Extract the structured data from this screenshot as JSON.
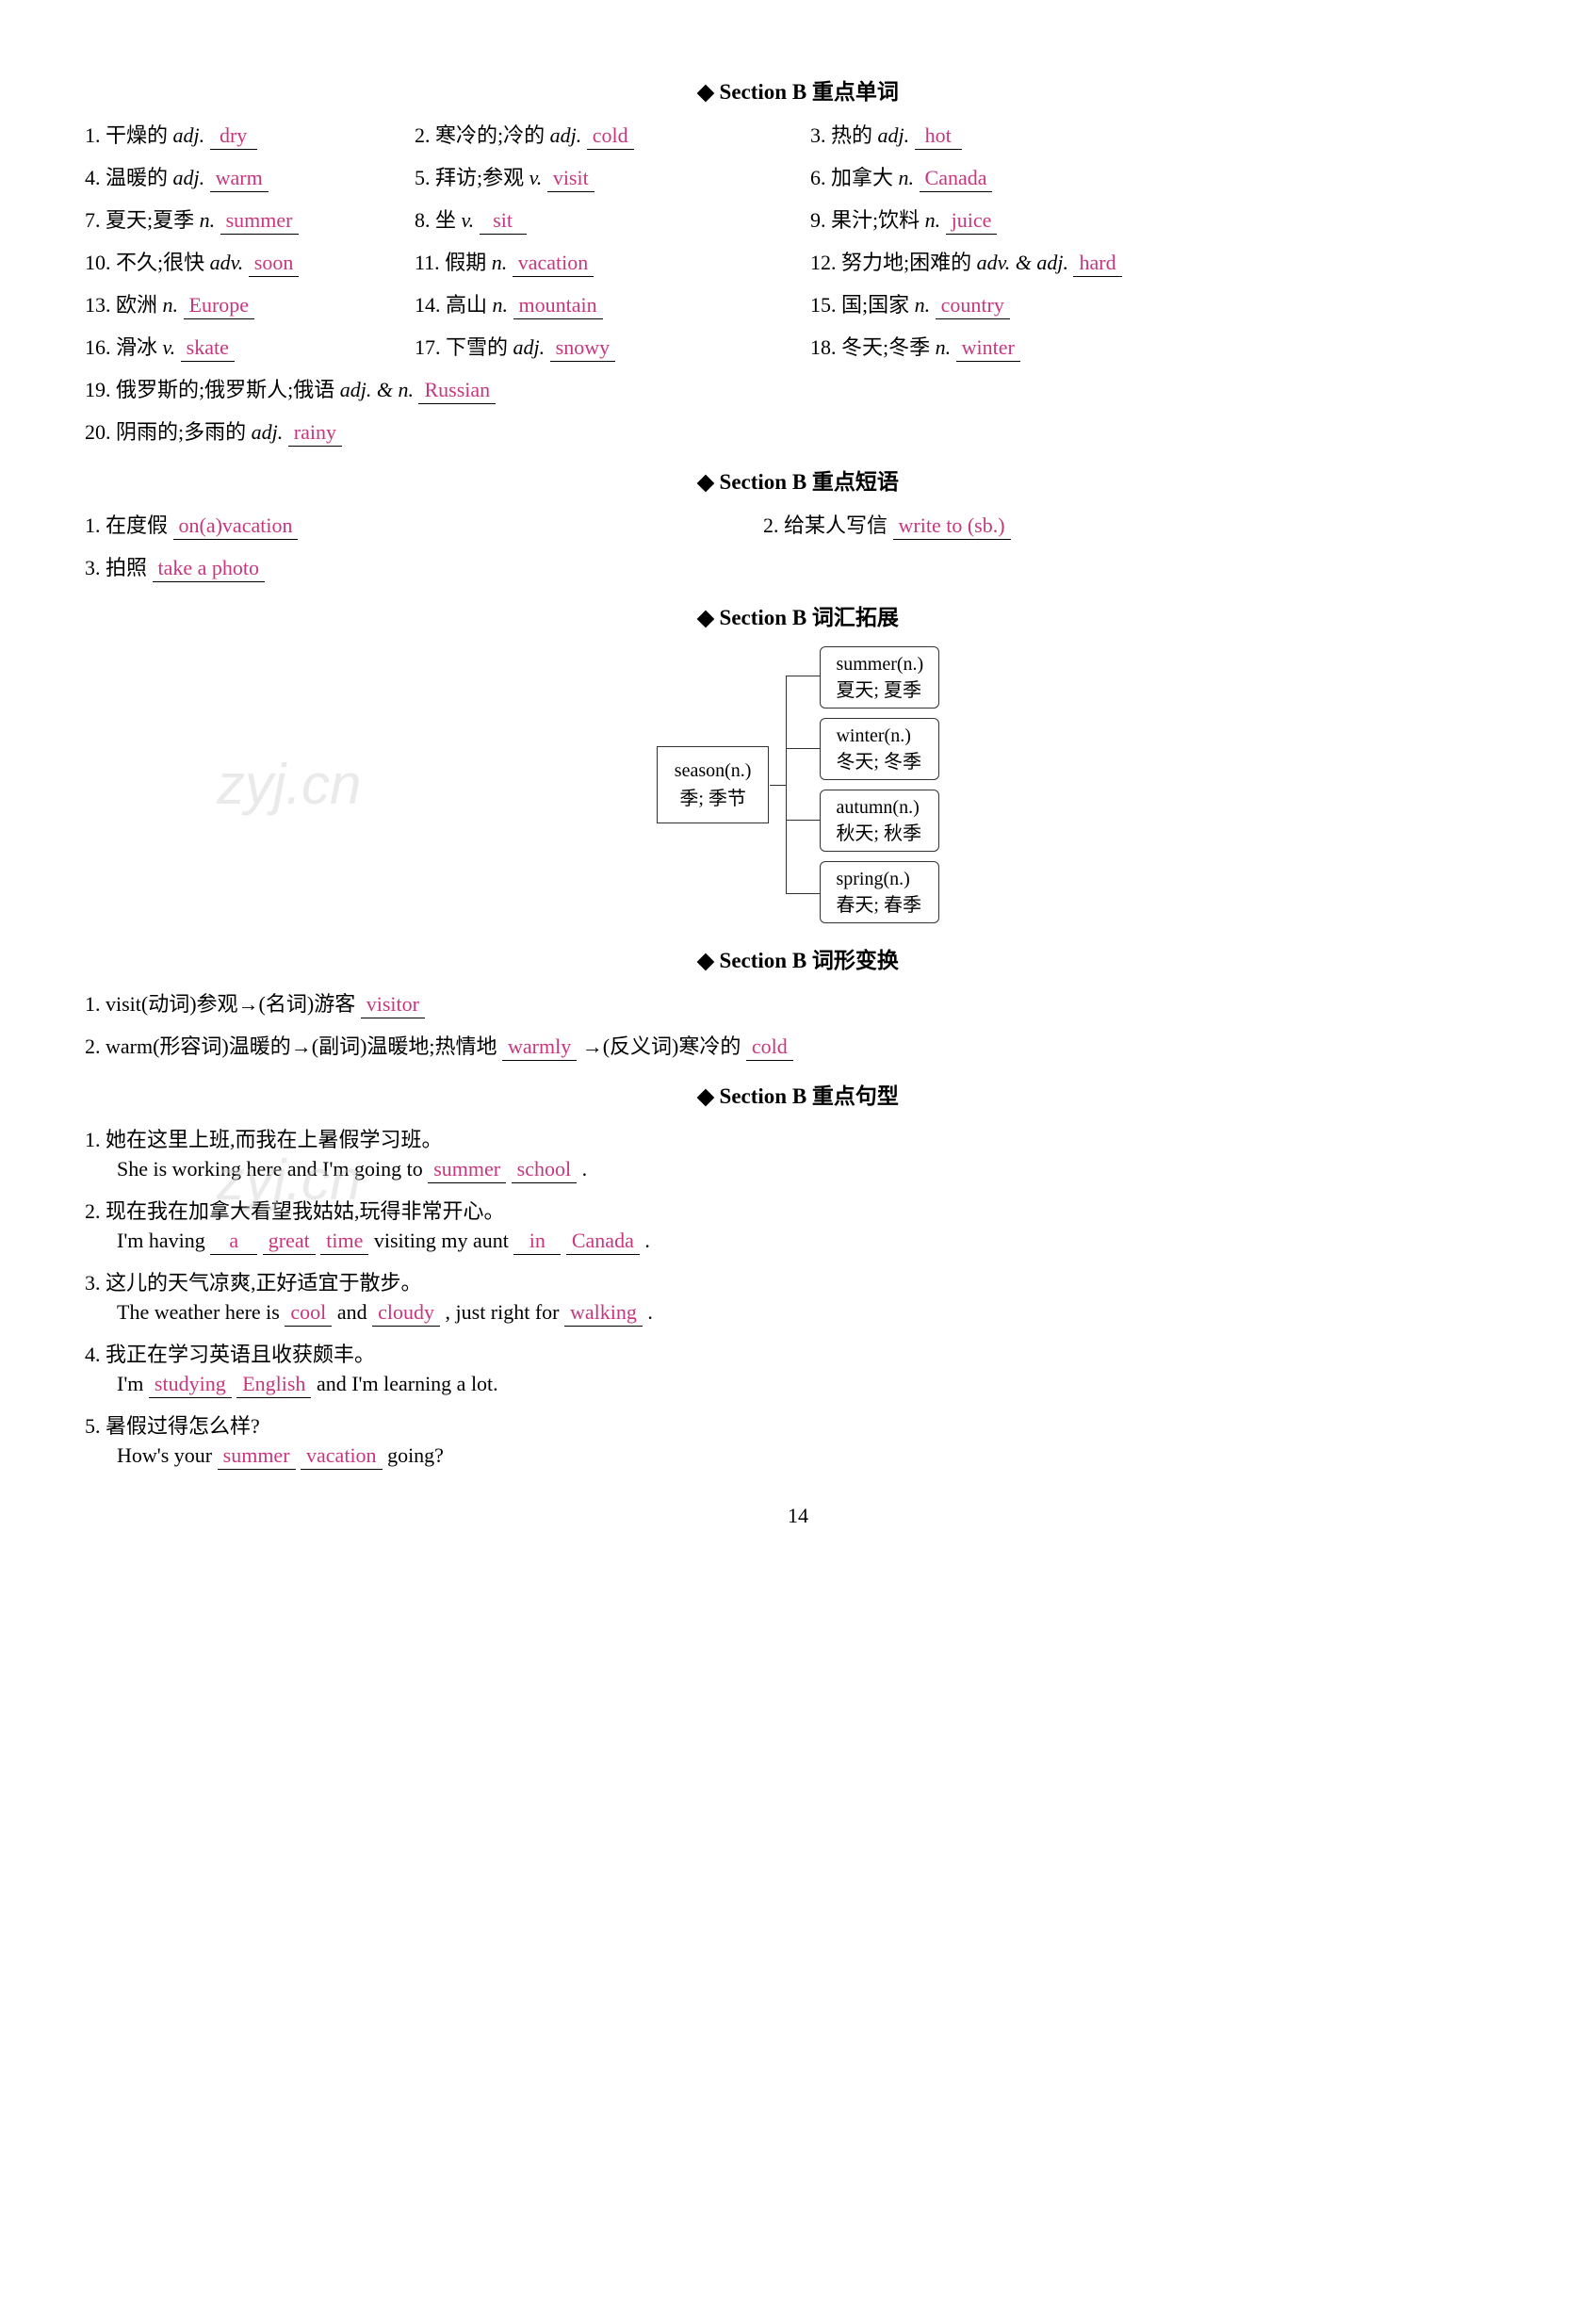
{
  "sections": {
    "vocab": {
      "title": "Section B 重点单词"
    },
    "phrases": {
      "title": "Section B 重点短语"
    },
    "expand": {
      "title": "Section B 词汇拓展"
    },
    "forms": {
      "title": "Section B 词形变换"
    },
    "sentences": {
      "title": "Section B 重点句型"
    }
  },
  "vocab": [
    {
      "n": "1.",
      "zh": "干燥的",
      "pos": "adj.",
      "ans": "dry"
    },
    {
      "n": "2.",
      "zh": "寒冷的;冷的",
      "pos": "adj.",
      "ans": "cold"
    },
    {
      "n": "3.",
      "zh": "热的",
      "pos": "adj.",
      "ans": "hot"
    },
    {
      "n": "4.",
      "zh": "温暖的",
      "pos": "adj.",
      "ans": "warm"
    },
    {
      "n": "5.",
      "zh": "拜访;参观",
      "pos": "v.",
      "ans": "visit"
    },
    {
      "n": "6.",
      "zh": "加拿大",
      "pos": "n.",
      "ans": "Canada"
    },
    {
      "n": "7.",
      "zh": "夏天;夏季",
      "pos": "n.",
      "ans": "summer"
    },
    {
      "n": "8.",
      "zh": "坐",
      "pos": "v.",
      "ans": "sit"
    },
    {
      "n": "9.",
      "zh": "果汁;饮料",
      "pos": "n.",
      "ans": "juice"
    },
    {
      "n": "10.",
      "zh": "不久;很快",
      "pos": "adv.",
      "ans": "soon"
    },
    {
      "n": "11.",
      "zh": "假期",
      "pos": "n.",
      "ans": "vacation"
    },
    {
      "n": "12.",
      "zh": "努力地;困难的",
      "pos": "adv. & adj.",
      "ans": "hard"
    },
    {
      "n": "13.",
      "zh": "欧洲",
      "pos": "n.",
      "ans": "Europe"
    },
    {
      "n": "14.",
      "zh": "高山",
      "pos": "n.",
      "ans": "mountain"
    },
    {
      "n": "15.",
      "zh": "国;国家",
      "pos": "n.",
      "ans": "country"
    },
    {
      "n": "16.",
      "zh": "滑冰",
      "pos": "v.",
      "ans": "skate"
    },
    {
      "n": "17.",
      "zh": "下雪的",
      "pos": "adj.",
      "ans": "snowy"
    },
    {
      "n": "18.",
      "zh": "冬天;冬季",
      "pos": "n.",
      "ans": "winter"
    },
    {
      "n": "19.",
      "zh": "俄罗斯的;俄罗斯人;俄语",
      "pos": "adj. & n.",
      "ans": "Russian"
    },
    {
      "n": "20.",
      "zh": "阴雨的;多雨的",
      "pos": "adj.",
      "ans": "rainy"
    }
  ],
  "phrases": [
    {
      "n": "1.",
      "zh": "在度假",
      "ans": "on(a)vacation"
    },
    {
      "n": "2.",
      "zh": "给某人写信",
      "ans": "write to (sb.)"
    },
    {
      "n": "3.",
      "zh": "拍照",
      "ans": "take a photo"
    }
  ],
  "diagram": {
    "root": {
      "en": "season(n.)",
      "zh": "季; 季节"
    },
    "children": [
      {
        "en": "summer(n.)",
        "zh": "夏天; 夏季"
      },
      {
        "en": "winter(n.)",
        "zh": "冬天; 冬季"
      },
      {
        "en": "autumn(n.)",
        "zh": "秋天; 秋季"
      },
      {
        "en": "spring(n.)",
        "zh": "春天; 春季"
      }
    ]
  },
  "forms": [
    {
      "n": "1.",
      "pre": "visit(动词)参观→(名词)游客",
      "ans1": "visitor"
    },
    {
      "n": "2.",
      "pre": "warm(形容词)温暖的→(副词)温暖地;热情地",
      "ans1": "warmly",
      "mid": "→(反义词)寒冷的",
      "ans2": "cold"
    }
  ],
  "sentences": [
    {
      "n": "1.",
      "zh": "她在这里上班,而我在上暑假学习班。",
      "en_pre": "She is working here and I'm going to",
      "blanks": [
        "summer",
        "school"
      ],
      "en_post": "."
    },
    {
      "n": "2.",
      "zh": "现在我在加拿大看望我姑姑,玩得非常开心。",
      "en_pre": "I'm having",
      "blanks": [
        "a",
        "great",
        "time"
      ],
      "en_mid": "visiting my aunt",
      "blanks2": [
        "in",
        "Canada"
      ],
      "en_post": "."
    },
    {
      "n": "3.",
      "zh": "这儿的天气凉爽,正好适宜于散步。",
      "en_pre": "The weather here is",
      "blanks": [
        "cool"
      ],
      "en_mid": "and",
      "blanks2": [
        "cloudy"
      ],
      "en_mid2": ", just right for",
      "blanks3": [
        "walking"
      ],
      "en_post": "."
    },
    {
      "n": "4.",
      "zh": "我正在学习英语且收获颇丰。",
      "en_pre": "I'm",
      "blanks": [
        "studying",
        "English"
      ],
      "en_mid": "and I'm learning a lot.",
      "en_post": ""
    },
    {
      "n": "5.",
      "zh": "暑假过得怎么样?",
      "en_pre": "How's your",
      "blanks": [
        "summer",
        "vacation"
      ],
      "en_mid": "going?",
      "en_post": ""
    }
  ],
  "page": "14",
  "watermark": "zyj.cn",
  "colors": {
    "answer": "#c8377e",
    "text": "#000000",
    "bg": "#ffffff"
  }
}
